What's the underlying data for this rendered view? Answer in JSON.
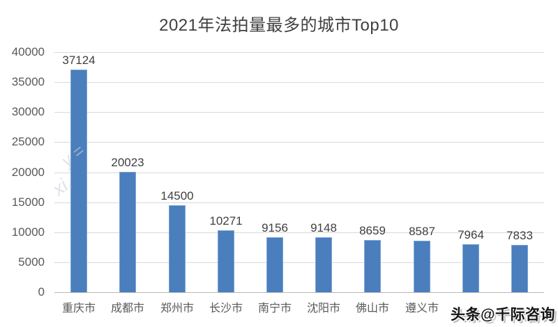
{
  "title": "2021年法拍量最多的城市Top10",
  "watermark": {
    "bottom_right": "头条@千际咨询",
    "faint_fragments": [
      "y =",
      "xi."
    ]
  },
  "chart_data": {
    "type": "bar",
    "title": "2021年法拍量最多的城市Top10",
    "categories": [
      "重庆市",
      "成都市",
      "郑州市",
      "长沙市",
      "南宁市",
      "沈阳市",
      "佛山市",
      "遵义市",
      "",
      ""
    ],
    "values": [
      37124,
      20023,
      14500,
      10271,
      9156,
      9148,
      8659,
      8587,
      7964,
      7833
    ],
    "data_labels": [
      "37124",
      "20023",
      "14500",
      "10271",
      "9156",
      "9148",
      "8659",
      "8587",
      "7964",
      "7833"
    ],
    "xlabel": "",
    "ylabel": "",
    "ylim": [
      0,
      40000
    ],
    "ytick_step": 5000,
    "yticks": [
      0,
      5000,
      10000,
      15000,
      20000,
      25000,
      30000,
      35000,
      40000
    ],
    "grid": true,
    "legend": false,
    "colors": {
      "bar_fill": "#4a7ebc",
      "bar_edge": "#7fa5d6",
      "gridline": "#d9d9d9",
      "axis_line": "#b7b7b7",
      "title_text": "#3f3f3f",
      "tick_text": "#595959",
      "data_label_text": "#3f3f3f"
    },
    "note_last_two_categories": "obscured by watermark"
  }
}
